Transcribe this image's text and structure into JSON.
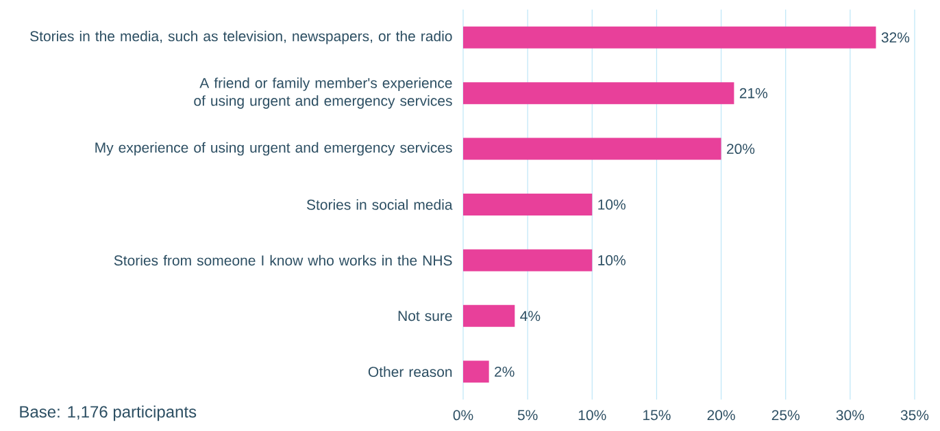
{
  "chart_data": {
    "type": "bar",
    "orientation": "horizontal",
    "categories": [
      "Stories in the media, such as television, newspapers, or the radio",
      "A friend or family member's experience of using urgent and emergency services",
      "My experience of using urgent and emergency services",
      "Stories in social media",
      "Stories from someone I know who works in the NHS",
      "Not sure",
      "Other reason"
    ],
    "values": [
      32,
      21,
      20,
      10,
      10,
      4,
      2
    ],
    "value_labels": [
      "32%",
      "21%",
      "20%",
      "10%",
      "10%",
      "4%",
      "2%"
    ],
    "color": "#e8409a",
    "xlim": [
      0,
      35
    ],
    "xticks": [
      {
        "value": 0,
        "label": "0%"
      },
      {
        "value": 5,
        "label": "5%"
      },
      {
        "value": 10,
        "label": "10%"
      },
      {
        "value": 15,
        "label": "15%"
      },
      {
        "value": 20,
        "label": "20%"
      },
      {
        "value": 25,
        "label": "25%"
      },
      {
        "value": 30,
        "label": "30%"
      },
      {
        "value": 35,
        "label": "35%"
      }
    ],
    "grid": "x",
    "annotations": [
      "Base: 1,176 participants"
    ]
  }
}
